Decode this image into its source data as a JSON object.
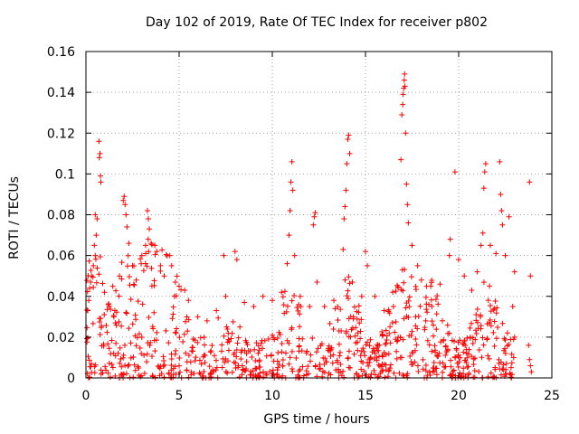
{
  "chart_data": {
    "type": "scatter",
    "title": "Day 102 of 2019, Rate Of TEC Index for receiver p802",
    "xlabel": "GPS time / hours",
    "ylabel": "ROTI / TECUs",
    "xlim": [
      0,
      25
    ],
    "ylim": [
      0,
      0.16
    ],
    "xticks": [
      0,
      5,
      10,
      15,
      20,
      25
    ],
    "yticks": [
      0,
      0.02,
      0.04,
      0.06,
      0.08,
      0.1,
      0.12,
      0.14,
      0.16
    ],
    "ytick_labels": [
      "0",
      "0.02",
      "0.04",
      "0.06",
      "0.08",
      "0.1",
      "0.12",
      "0.14",
      "0.16"
    ],
    "grid": true,
    "marker": "+",
    "marker_color": "#ff0000",
    "series": [
      {
        "points": [
          [
            0.5,
            0.08
          ],
          [
            0.6,
            0.078
          ],
          [
            0.55,
            0.07
          ],
          [
            0.7,
            0.116
          ],
          [
            0.75,
            0.11
          ],
          [
            0.72,
            0.108
          ],
          [
            0.78,
            0.099
          ],
          [
            0.8,
            0.096
          ],
          [
            0.5,
            0.06
          ],
          [
            0.4,
            0.055
          ],
          [
            0.3,
            0.05
          ],
          [
            0.2,
            0.044
          ],
          [
            0.15,
            0.038
          ],
          [
            0.1,
            0.033
          ],
          [
            0.25,
            0.047
          ],
          [
            0.45,
            0.065
          ],
          [
            1.0,
            0.042
          ],
          [
            1.2,
            0.036
          ],
          [
            1.5,
            0.03
          ],
          [
            1.8,
            0.05
          ],
          [
            2.0,
            0.087
          ],
          [
            2.05,
            0.089
          ],
          [
            2.1,
            0.085
          ],
          [
            2.15,
            0.08
          ],
          [
            2.2,
            0.074
          ],
          [
            2.3,
            0.066
          ],
          [
            2.5,
            0.055
          ],
          [
            2.7,
            0.048
          ],
          [
            3.0,
            0.06
          ],
          [
            3.2,
            0.065
          ],
          [
            3.3,
            0.082
          ],
          [
            3.35,
            0.078
          ],
          [
            3.4,
            0.073
          ],
          [
            3.5,
            0.066
          ],
          [
            3.7,
            0.065
          ],
          [
            3.8,
            0.062
          ],
          [
            4.0,
            0.055
          ],
          [
            4.2,
            0.05
          ],
          [
            4.5,
            0.06
          ],
          [
            4.6,
            0.055
          ],
          [
            4.8,
            0.047
          ],
          [
            5.0,
            0.045
          ],
          [
            5.3,
            0.043
          ],
          [
            5.5,
            0.038
          ],
          [
            6.0,
            0.03
          ],
          [
            6.5,
            0.028
          ],
          [
            7.0,
            0.033
          ],
          [
            7.4,
            0.06
          ],
          [
            7.5,
            0.04
          ],
          [
            8.0,
            0.062
          ],
          [
            8.1,
            0.058
          ],
          [
            8.5,
            0.037
          ],
          [
            9.0,
            0.035
          ],
          [
            9.5,
            0.04
          ],
          [
            10.0,
            0.038
          ],
          [
            10.5,
            0.042
          ],
          [
            10.8,
            0.056
          ],
          [
            10.9,
            0.07
          ],
          [
            10.95,
            0.082
          ],
          [
            11.0,
            0.096
          ],
          [
            11.05,
            0.106
          ],
          [
            11.1,
            0.092
          ],
          [
            11.2,
            0.06
          ],
          [
            11.5,
            0.04
          ],
          [
            12.0,
            0.035
          ],
          [
            12.2,
            0.075
          ],
          [
            12.25,
            0.079
          ],
          [
            12.3,
            0.081
          ],
          [
            12.4,
            0.047
          ],
          [
            12.8,
            0.035
          ],
          [
            13.3,
            0.038
          ],
          [
            13.8,
            0.063
          ],
          [
            13.85,
            0.078
          ],
          [
            13.9,
            0.084
          ],
          [
            13.95,
            0.092
          ],
          [
            14.0,
            0.105
          ],
          [
            14.05,
            0.117
          ],
          [
            14.1,
            0.119
          ],
          [
            14.15,
            0.11
          ],
          [
            14.3,
            0.047
          ],
          [
            14.8,
            0.04
          ],
          [
            15.0,
            0.062
          ],
          [
            15.1,
            0.055
          ],
          [
            15.5,
            0.04
          ],
          [
            16.0,
            0.033
          ],
          [
            16.5,
            0.035
          ],
          [
            16.9,
            0.107
          ],
          [
            16.95,
            0.129
          ],
          [
            17.0,
            0.134
          ],
          [
            17.02,
            0.139
          ],
          [
            17.05,
            0.142
          ],
          [
            17.08,
            0.146
          ],
          [
            17.1,
            0.149
          ],
          [
            17.12,
            0.143
          ],
          [
            17.15,
            0.12
          ],
          [
            17.2,
            0.095
          ],
          [
            17.25,
            0.085
          ],
          [
            17.3,
            0.076
          ],
          [
            17.5,
            0.065
          ],
          [
            17.8,
            0.055
          ],
          [
            18.0,
            0.048
          ],
          [
            18.5,
            0.045
          ],
          [
            19.0,
            0.046
          ],
          [
            19.5,
            0.06
          ],
          [
            19.55,
            0.068
          ],
          [
            19.8,
            0.101
          ],
          [
            20.0,
            0.058
          ],
          [
            20.3,
            0.05
          ],
          [
            20.7,
            0.043
          ],
          [
            21.0,
            0.052
          ],
          [
            21.2,
            0.065
          ],
          [
            21.3,
            0.071
          ],
          [
            21.35,
            0.093
          ],
          [
            21.4,
            0.101
          ],
          [
            21.45,
            0.105
          ],
          [
            21.7,
            0.065
          ],
          [
            22.0,
            0.061
          ],
          [
            22.2,
            0.106
          ],
          [
            22.25,
            0.09
          ],
          [
            22.3,
            0.082
          ],
          [
            22.35,
            0.075
          ],
          [
            22.5,
            0.06
          ],
          [
            22.7,
            0.079
          ],
          [
            23.0,
            0.052
          ],
          [
            23.8,
            0.096
          ],
          [
            23.85,
            0.05
          ],
          [
            23.75,
            0.016
          ],
          [
            23.8,
            0.009
          ],
          [
            23.85,
            0.006
          ],
          [
            23.9,
            0.003
          ],
          [
            22.9,
            0.035
          ],
          [
            23.0,
            0.02
          ],
          [
            22.95,
            0.01
          ]
        ]
      }
    ]
  }
}
